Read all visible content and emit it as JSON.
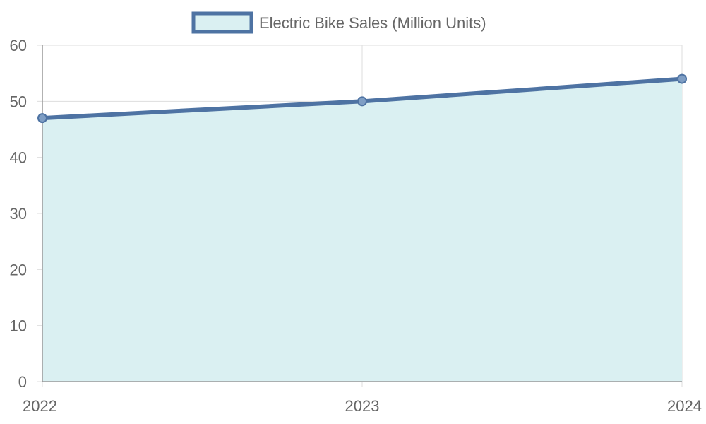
{
  "chart_data": {
    "type": "area",
    "categories": [
      "2022",
      "2023",
      "2024"
    ],
    "series": [
      {
        "name": "Electric Bike Sales (Million Units)",
        "values": [
          47,
          50,
          54
        ]
      }
    ],
    "ylim": [
      0,
      60
    ],
    "yticks": [
      0,
      10,
      20,
      30,
      40,
      50,
      60
    ],
    "grid": true,
    "legend_position": "top",
    "colors": {
      "line": "#4e73a3",
      "fill": "#daf0f2",
      "grid": "#dddddd",
      "axis": "#999999",
      "text": "#666666"
    }
  }
}
